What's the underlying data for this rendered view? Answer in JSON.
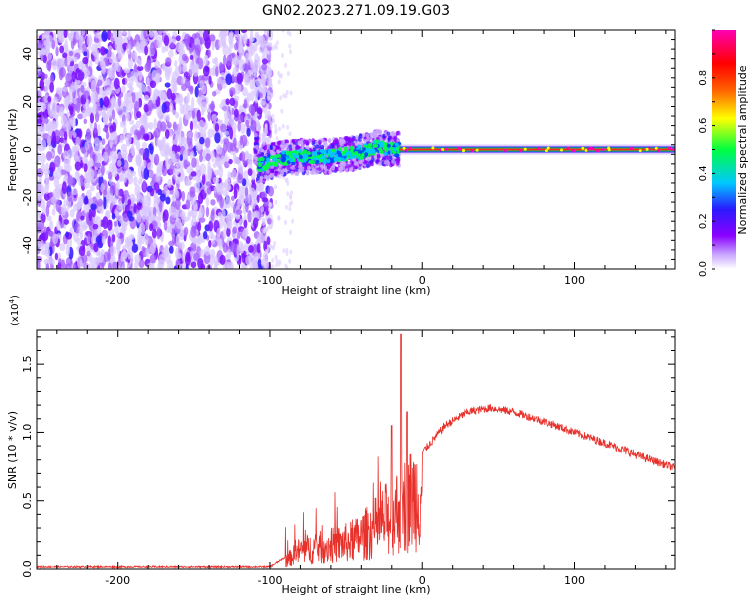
{
  "title": "GN02.2023.271.09.19.G03",
  "chart_data": [
    {
      "type": "heatmap",
      "xlabel": "Height of straight line (km)",
      "ylabel": "Frequency (Hz)",
      "xlim": [
        -253,
        166
      ],
      "ylim": [
        -50,
        50
      ],
      "xticks": [
        -200,
        -100,
        0,
        100
      ],
      "yticks": [
        -40,
        -20,
        0,
        20,
        40
      ],
      "colorbar": {
        "label": "Normalized spectral amplitude",
        "range": [
          0,
          1
        ],
        "ticks": [
          0.0,
          0.2,
          0.4,
          0.6,
          0.8
        ],
        "colormap": [
          "#ffffff",
          "#8a00ff",
          "#2a1aff",
          "#00c8ff",
          "#00ff40",
          "#ffff00",
          "#ff6000",
          "#ff0000",
          "#ff00b4"
        ]
      },
      "noise_region_x": [
        -253,
        -105
      ],
      "signal_trace": [
        {
          "x": -108,
          "y": -7
        },
        {
          "x": -95,
          "y": -4
        },
        {
          "x": -80,
          "y": -3
        },
        {
          "x": -65,
          "y": -3
        },
        {
          "x": -50,
          "y": -2
        },
        {
          "x": -40,
          "y": -1
        },
        {
          "x": -30,
          "y": 1
        },
        {
          "x": -20,
          "y": 0
        },
        {
          "x": -10,
          "y": 0
        },
        {
          "x": 0,
          "y": 0
        },
        {
          "x": 166,
          "y": 0
        }
      ]
    },
    {
      "type": "line",
      "ylabel": "SNR (10 * v/v)",
      "xlabel": "Height of straight line (km)",
      "y_multiplier": "(x10",
      "y_multiplier_exp": "4",
      "y_multiplier_close": ")",
      "xlim": [
        -253,
        166
      ],
      "ylim": [
        0,
        1.75
      ],
      "xticks": [
        -200,
        -100,
        0,
        100
      ],
      "yticks": [
        0.0,
        0.5,
        1.0,
        1.5
      ],
      "color": "#e8302a",
      "envelope": [
        {
          "x": -253,
          "y": 0.01
        },
        {
          "x": -150,
          "y": 0.01
        },
        {
          "x": -100,
          "y": 0.01
        },
        {
          "x": -90,
          "y": 0.08
        },
        {
          "x": -80,
          "y": 0.2
        },
        {
          "x": -60,
          "y": 0.25
        },
        {
          "x": -45,
          "y": 0.3
        },
        {
          "x": -30,
          "y": 0.45
        },
        {
          "x": -15,
          "y": 0.65
        },
        {
          "x": 0,
          "y": 0.85
        },
        {
          "x": 15,
          "y": 1.05
        },
        {
          "x": 30,
          "y": 1.15
        },
        {
          "x": 45,
          "y": 1.18
        },
        {
          "x": 60,
          "y": 1.15
        },
        {
          "x": 80,
          "y": 1.08
        },
        {
          "x": 100,
          "y": 1.0
        },
        {
          "x": 120,
          "y": 0.92
        },
        {
          "x": 140,
          "y": 0.84
        },
        {
          "x": 166,
          "y": 0.74
        }
      ],
      "peaks": [
        {
          "x": -14,
          "y": 1.72
        },
        {
          "x": -10,
          "y": 1.15
        },
        {
          "x": -20,
          "y": 1.05
        }
      ]
    }
  ]
}
